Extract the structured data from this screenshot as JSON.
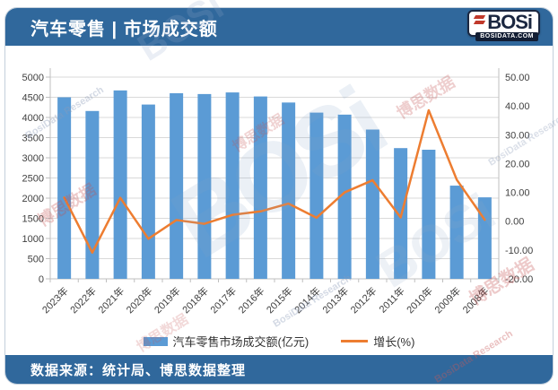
{
  "header": {
    "title": "汽车零售 | 市场成交额"
  },
  "logo": {
    "name": "BOSi",
    "domain": "BOSIDATA.COM"
  },
  "footer": {
    "source": "数据来源：统计局、博思数据整理"
  },
  "watermark": {
    "cn": "博思数据",
    "en": "BosiData Research",
    "logo_text": "BOSi"
  },
  "colors": {
    "band_blue": "#30689C",
    "bar_blue": "#5B9BD5",
    "line_orange": "#ED7D31",
    "grid": "#D9D9D9",
    "axis_line": "#BFBFBF",
    "axis_text": "#404040"
  },
  "chart_data": {
    "type": "bar+line",
    "title": "汽车零售市场成交额",
    "categories": [
      "2023年",
      "2022年",
      "2021年",
      "2020年",
      "2019年",
      "2018年",
      "2017年",
      "2016年",
      "2015年",
      "2014年",
      "2013年",
      "2012年",
      "2011年",
      "2010年",
      "2009年",
      "2008年"
    ],
    "series": [
      {
        "name": "汽车零售市场成交额(亿元)",
        "type": "bar",
        "axis": "left",
        "color": "#5B9BD5",
        "values": [
          4500,
          4160,
          4670,
          4320,
          4600,
          4580,
          4620,
          4520,
          4370,
          4120,
          4070,
          3700,
          3240,
          3200,
          2310,
          2020
        ]
      },
      {
        "name": "增长(%)",
        "type": "line",
        "axis": "right",
        "color": "#ED7D31",
        "values": [
          8.2,
          -10.9,
          8.1,
          -6.1,
          0.4,
          -0.9,
          2.2,
          3.4,
          6.1,
          1.2,
          10.0,
          14.2,
          1.3,
          38.5,
          14.4,
          0.5
        ]
      }
    ],
    "left_axis": {
      "min": 0,
      "max": 5000,
      "step": 500
    },
    "right_axis": {
      "min": -20,
      "max": 50,
      "step": 10,
      "decimals": 2
    },
    "grid": true,
    "legend_position": "bottom"
  }
}
